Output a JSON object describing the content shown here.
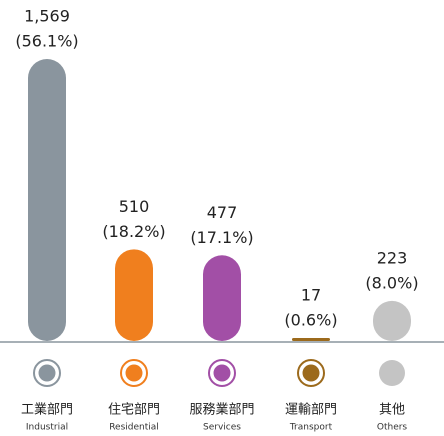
{
  "chart_data": {
    "type": "bar",
    "categories": [
      "工業部門",
      "住宅部門",
      "服務業部門",
      "運輸部門",
      "其他"
    ],
    "categories_en": [
      "Industrial",
      "Residential",
      "Services",
      "Transport",
      "Others"
    ],
    "values": [
      1569,
      510,
      477,
      17,
      223
    ],
    "value_labels": [
      "1,569",
      "510",
      "477",
      "17",
      "223"
    ],
    "percent_labels": [
      "(56.1%)",
      "(18.2%)",
      "(17.1%)",
      "(0.6%)",
      "(8.0%)"
    ],
    "colors": [
      "#8a959e",
      "#f07f1e",
      "#a24fa6",
      "#9c6a1c",
      "#c4c4c4"
    ]
  }
}
